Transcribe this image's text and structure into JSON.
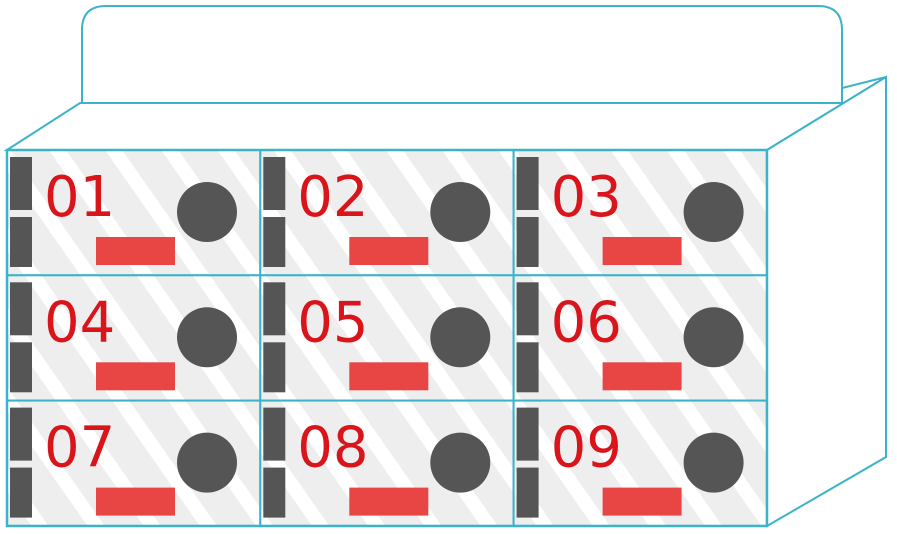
{
  "lockers": [
    {
      "label": "01"
    },
    {
      "label": "02"
    },
    {
      "label": "03"
    },
    {
      "label": "04"
    },
    {
      "label": "05"
    },
    {
      "label": "06"
    },
    {
      "label": "07"
    },
    {
      "label": "08"
    },
    {
      "label": "09"
    }
  ],
  "grid": {
    "rows": 3,
    "columns": 3
  },
  "colors": {
    "outline": "#3bb3c9",
    "number": "#d9141b",
    "indicator": "#e84545",
    "knob": "#555555",
    "hinge": "#555555",
    "door_fill": "#eeeeee",
    "stripe": "#ffffff"
  }
}
